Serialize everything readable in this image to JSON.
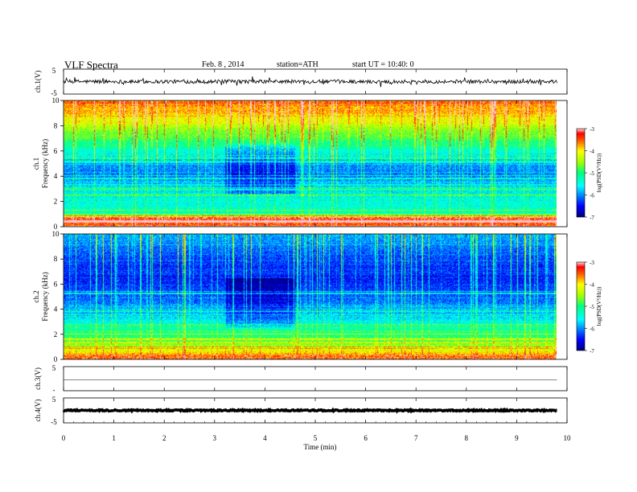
{
  "header": {
    "title": "VLF  Spectra",
    "date": "Feb. 8  , 2014",
    "station": "station=ATH",
    "start_ut": "start  UT  =   10:40: 0"
  },
  "chart_data": [
    {
      "type": "line",
      "panel": "ch1-waveform",
      "ylabel": "ch.1(V)",
      "ylim": [
        -5,
        5
      ],
      "y_ticks": [
        "5",
        "-5"
      ],
      "description_level": 0.0,
      "series": [
        {
          "x_range": [
            0,
            9.8
          ],
          "approx_mean": 0.0,
          "approx_amplitude": 1.5
        }
      ]
    },
    {
      "type": "heatmap",
      "panel": "ch1-spectrogram",
      "ylabel": "Frequency  (kHz)",
      "channel_label": "ch.1",
      "ylim": [
        0,
        10
      ],
      "y_ticks": [
        "0",
        "2",
        "4",
        "6",
        "8",
        "10"
      ],
      "colorbar": {
        "label": "log(PSD(V²/Hz))",
        "range": [
          -7,
          -3
        ],
        "ticks": [
          "-3",
          "-4",
          "-5",
          "-6",
          "-7"
        ]
      },
      "profile": [
        {
          "f": 0.2,
          "v": -3.5
        },
        {
          "f": 0.6,
          "v": -3.3
        },
        {
          "f": 1.0,
          "v": -5.3
        },
        {
          "f": 2.0,
          "v": -5.5
        },
        {
          "f": 3.0,
          "v": -5.7
        },
        {
          "f": 4.0,
          "v": -6.1
        },
        {
          "f": 5.0,
          "v": -6.0
        },
        {
          "f": 6.0,
          "v": -5.4
        },
        {
          "f": 7.0,
          "v": -4.9
        },
        {
          "f": 8.0,
          "v": -4.4
        },
        {
          "f": 9.0,
          "v": -3.9
        },
        {
          "f": 10.0,
          "v": -3.6
        }
      ],
      "quiet_interval_min": [
        3.2,
        4.6
      ]
    },
    {
      "type": "heatmap",
      "panel": "ch2-spectrogram",
      "ylabel": "Frequency  (kHz)",
      "channel_label": "ch.2",
      "ylim": [
        0,
        10
      ],
      "y_ticks": [
        "0",
        "2",
        "4",
        "6",
        "8",
        "10"
      ],
      "colorbar": {
        "label": "log(PSD(V²/Hz))",
        "range": [
          -7,
          -3
        ],
        "ticks": [
          "-3",
          "-4",
          "-5",
          "-6",
          "-7"
        ]
      },
      "profile": [
        {
          "f": 0.2,
          "v": -3.6
        },
        {
          "f": 0.8,
          "v": -4.3
        },
        {
          "f": 1.5,
          "v": -4.9
        },
        {
          "f": 2.5,
          "v": -5.3
        },
        {
          "f": 3.5,
          "v": -5.8
        },
        {
          "f": 4.5,
          "v": -6.1
        },
        {
          "f": 5.5,
          "v": -6.3
        },
        {
          "f": 6.5,
          "v": -6.5
        },
        {
          "f": 7.5,
          "v": -6.4
        },
        {
          "f": 8.5,
          "v": -6.2
        },
        {
          "f": 9.5,
          "v": -6.0
        },
        {
          "f": 10.0,
          "v": -5.9
        }
      ],
      "quiet_interval_min": [
        3.2,
        4.6
      ]
    },
    {
      "type": "line",
      "panel": "ch3-waveform",
      "ylabel": "ch.3(V)",
      "ylim": [
        -5,
        5
      ],
      "y_ticks": [
        "5",
        "-"
      ],
      "series": [
        {
          "x_range": [
            0,
            9.8
          ],
          "approx_mean": -0.5,
          "approx_amplitude": 0.05
        }
      ]
    },
    {
      "type": "line",
      "panel": "ch4-waveform",
      "ylabel": "ch.4(V)",
      "ylim": [
        -5,
        5
      ],
      "y_ticks": [
        "5",
        "-5"
      ],
      "series": [
        {
          "x_range": [
            0,
            9.8
          ],
          "approx_mean": 0.0,
          "approx_amplitude": 0.25
        }
      ]
    }
  ],
  "xaxis": {
    "label": "Time  (min)",
    "xlim": [
      0,
      10
    ],
    "ticks": [
      "0",
      "1",
      "2",
      "3",
      "4",
      "5",
      "6",
      "7",
      "8",
      "9",
      "10"
    ]
  }
}
